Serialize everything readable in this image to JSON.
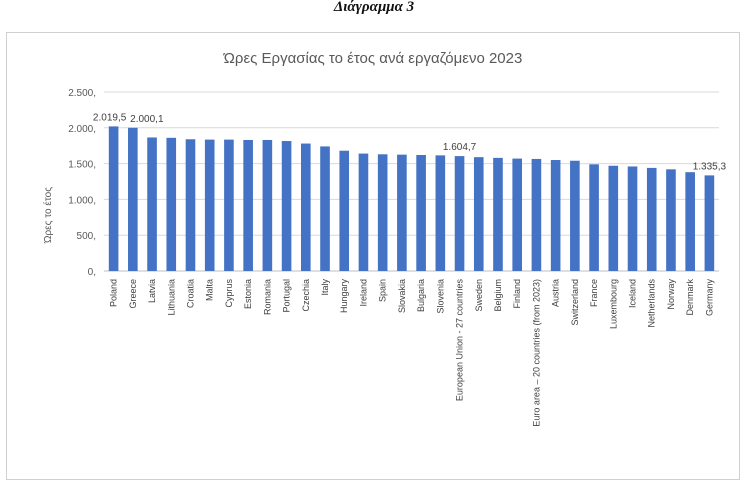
{
  "document": {
    "caption": "Διάγραμμα 3"
  },
  "chart_data": {
    "type": "bar",
    "title": "Ώρες Εργασίας το έτος ανά εργαζόμενο 2023",
    "ylabel": "Ώρες το έτος",
    "xlabel": "",
    "ylim": [
      0,
      2500
    ],
    "yticks": [
      0,
      500,
      1000,
      1500,
      2000,
      2500
    ],
    "ytick_labels": [
      "0,",
      "500,",
      "1.000,",
      "1.500,",
      "2.000,",
      "2.500,"
    ],
    "grid": true,
    "bar_color": "#4472C4",
    "categories": [
      "Poland",
      "Greece",
      "Latvia",
      "Lithuania",
      "Croatia",
      "Malta",
      "Cyprus",
      "Estonia",
      "Romania",
      "Portugal",
      "Czechia",
      "Italy",
      "Hungary",
      "Ireland",
      "Spain",
      "Slovakia",
      "Bulgaria",
      "Slovenia",
      "European Union - 27 countries",
      "Sweden",
      "Belgium",
      "Finland",
      "Euro area – 20 countries (from 2023)",
      "Austria",
      "Switzerland",
      "France",
      "Luxembourg",
      "Iceland",
      "Netherlands",
      "Norway",
      "Denmark",
      "Germany"
    ],
    "values": [
      2019.5,
      2000.1,
      1865,
      1860,
      1840,
      1835,
      1835,
      1830,
      1830,
      1815,
      1780,
      1740,
      1680,
      1640,
      1630,
      1625,
      1620,
      1615,
      1604.7,
      1590,
      1580,
      1570,
      1565,
      1550,
      1540,
      1490,
      1470,
      1460,
      1440,
      1420,
      1380,
      1335.3
    ],
    "data_labels": [
      {
        "index": 0,
        "text": "2.019,5"
      },
      {
        "index": 1,
        "text": "2.000,1"
      },
      {
        "index": 18,
        "text": "1.604,7"
      },
      {
        "index": 31,
        "text": "1.335,3"
      }
    ]
  }
}
